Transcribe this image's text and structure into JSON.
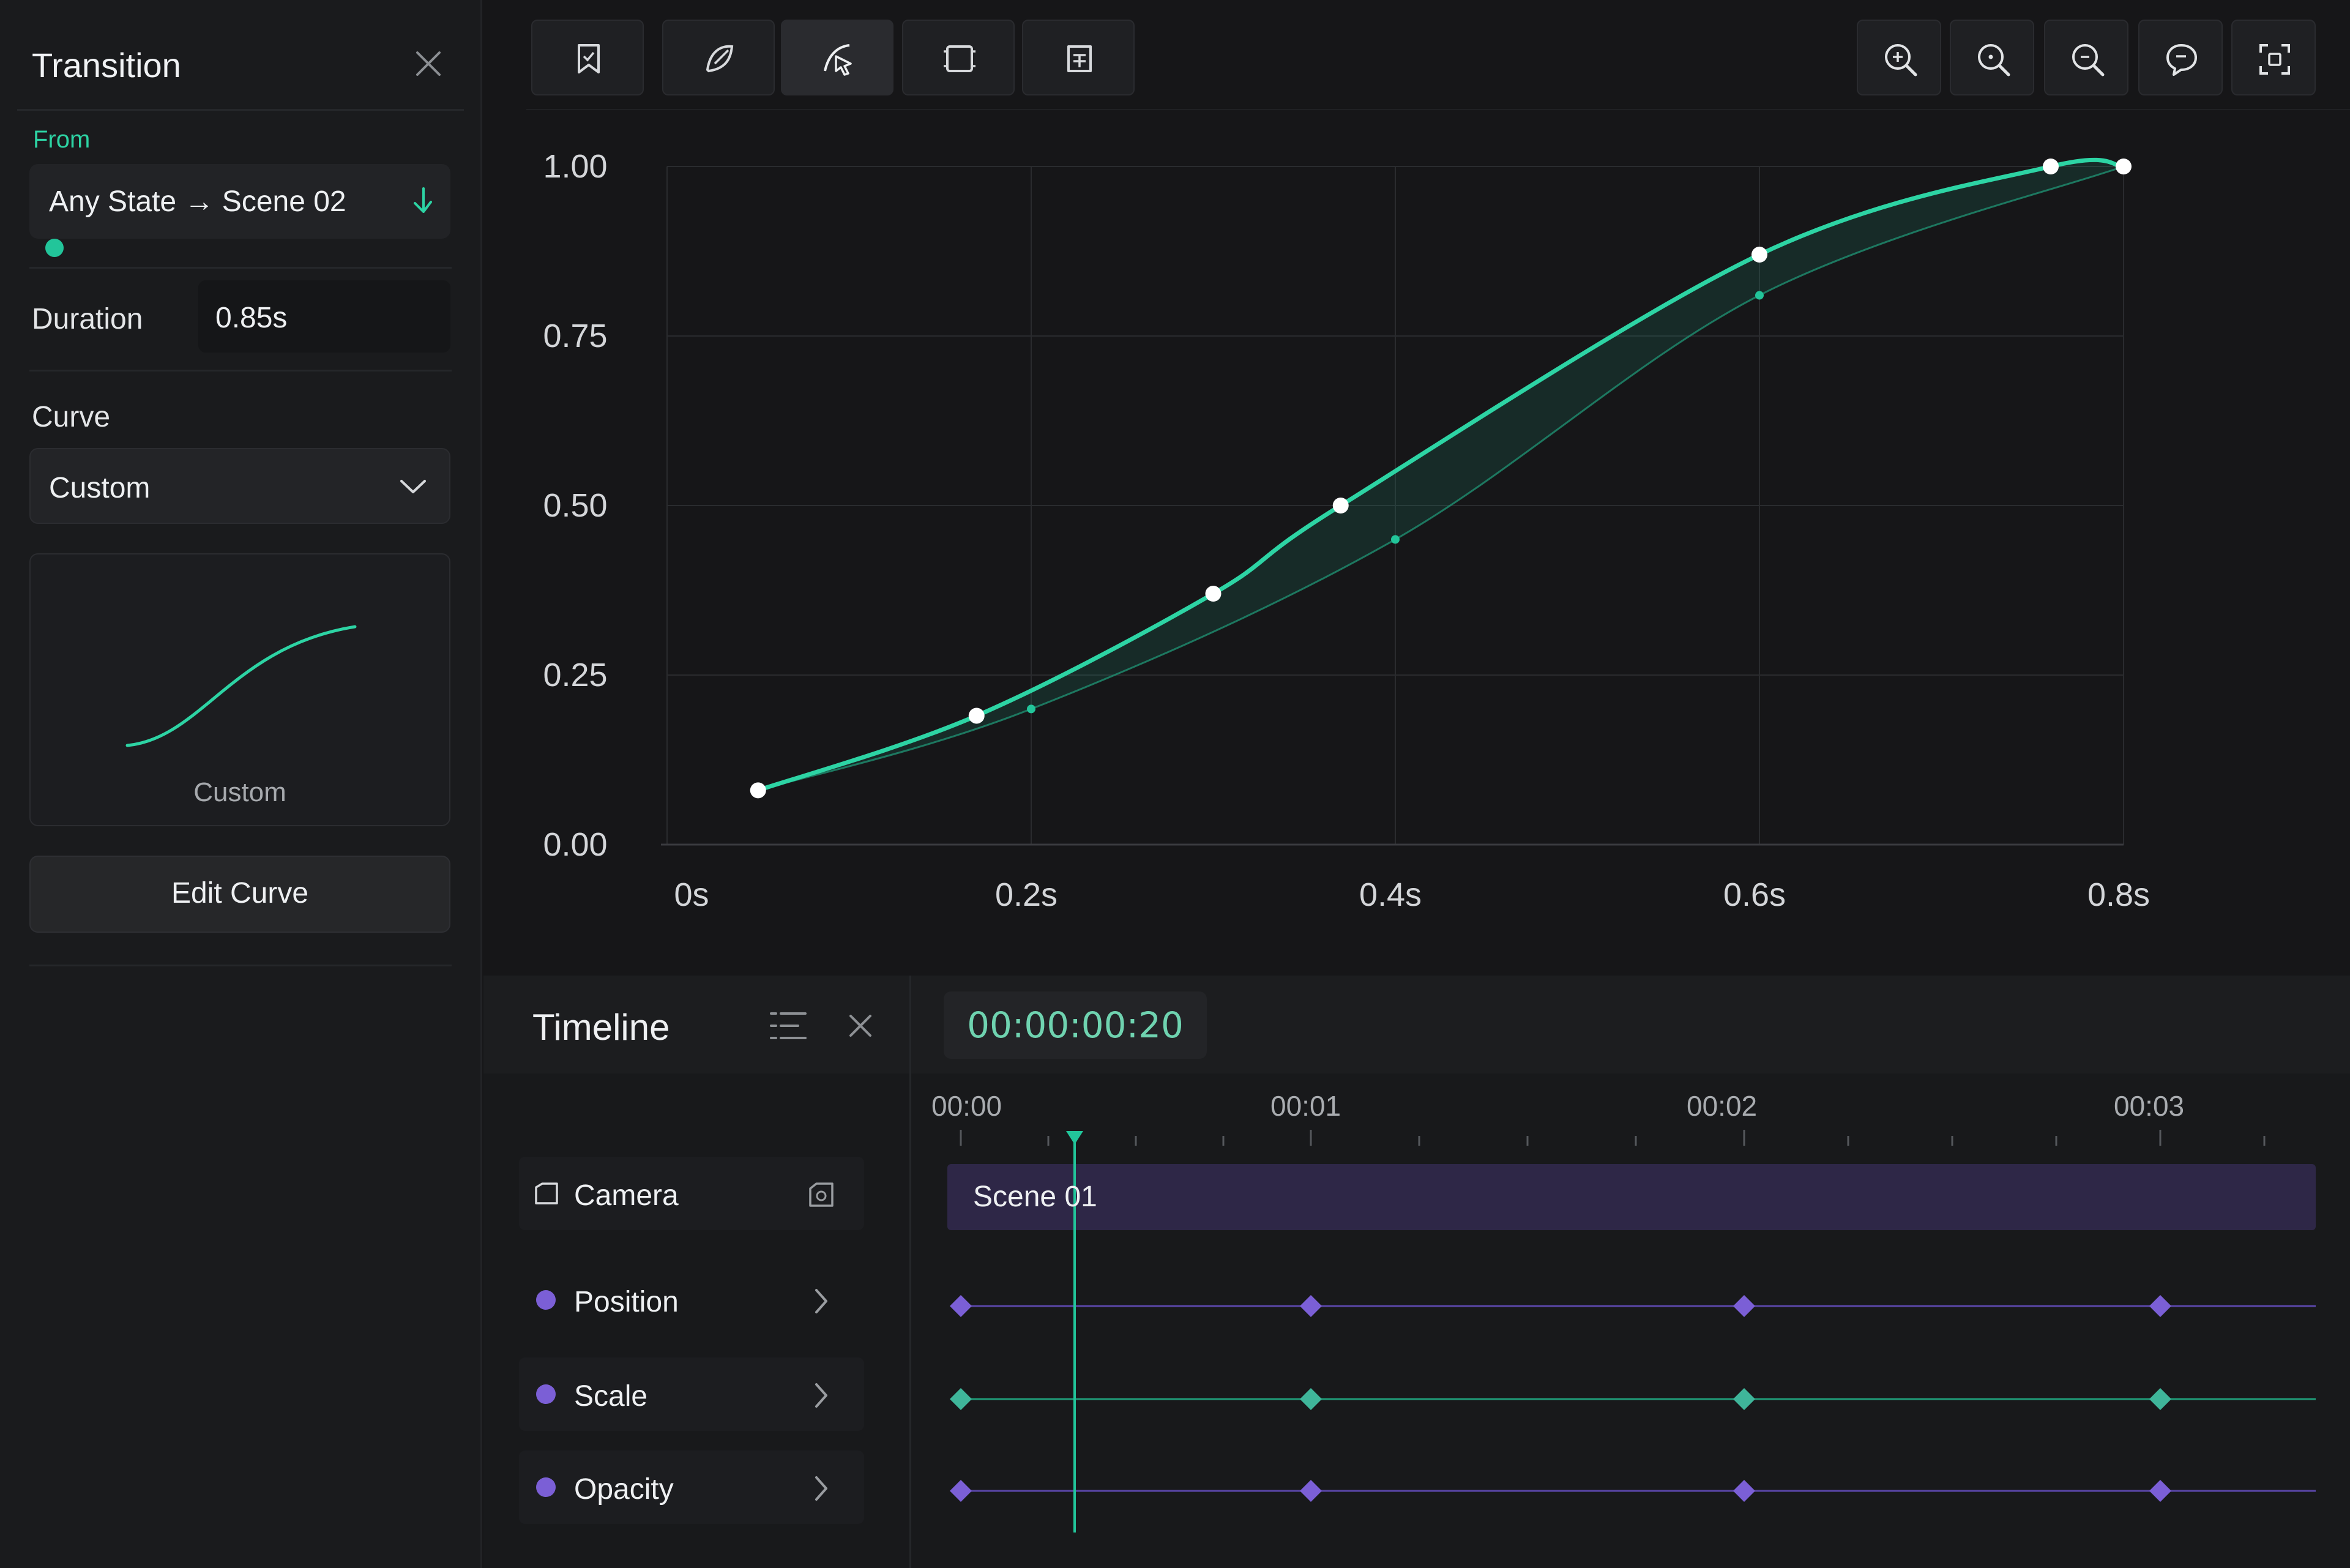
{
  "inspector": {
    "title": "Transition",
    "from_label": "From",
    "from_value": "Any State → Scene 02",
    "duration_label": "Duration",
    "duration_value": "0.85s",
    "curve_label": "Curve",
    "curve_value": "Custom",
    "preview_caption": "Custom",
    "edit_button": "Edit Curve"
  },
  "toolbar": {
    "tools": [
      {
        "icon": "bookmark-icon"
      },
      {
        "icon": "curve-edit-icon"
      },
      {
        "icon": "curve-select-icon",
        "active": true
      },
      {
        "icon": "frame-icon"
      },
      {
        "icon": "layers-icon"
      }
    ],
    "zoom_tools": [
      {
        "icon": "zoom-in-icon"
      },
      {
        "icon": "zoom-out-icon"
      },
      {
        "icon": "zoom-reset-icon"
      },
      {
        "icon": "zoom-comment-icon"
      },
      {
        "icon": "fit-view-icon"
      }
    ]
  },
  "chart_data": {
    "type": "line",
    "title": "",
    "xlabel": "",
    "ylabel": "",
    "x_ticks": [
      "0s",
      "0.2s",
      "0.4s",
      "0.6s",
      "0.8s"
    ],
    "y_ticks": [
      "1.00",
      "0.75",
      "0.50",
      "0.25",
      "0.00"
    ],
    "xlim": [
      0,
      0.8
    ],
    "ylim": [
      0,
      1
    ],
    "grid": true,
    "series": [
      {
        "x": [
          0.05,
          0.17,
          0.3,
          0.37,
          0.6,
          0.76,
          0.8
        ],
        "y": [
          0.08,
          0.19,
          0.37,
          0.5,
          0.87,
          1.0,
          1.0
        ]
      }
    ],
    "reference_curve": {
      "x": [
        0.05,
        0.2,
        0.4,
        0.6,
        0.8
      ],
      "y": [
        0.08,
        0.2,
        0.45,
        0.81,
        1.0
      ]
    }
  },
  "timeline": {
    "title": "Timeline",
    "timecode": "00:00:00:20",
    "ruler": [
      "00:00",
      "00:01",
      "00:02",
      "00:03"
    ],
    "clip_label": "Scene 01",
    "playhead_time": 0.5,
    "tracks": [
      {
        "label": "Camera"
      },
      {
        "label": "Position",
        "keys": [
          0,
          1,
          2,
          3
        ]
      },
      {
        "label": "Scale",
        "keys": [
          0,
          1,
          2,
          3
        ]
      },
      {
        "label": "Opacity",
        "keys": [
          0,
          1,
          2,
          3
        ]
      }
    ],
    "colors": {
      "accent": "#22c59a",
      "purple": "#7b5fd6",
      "clip": "#2e2747"
    }
  }
}
